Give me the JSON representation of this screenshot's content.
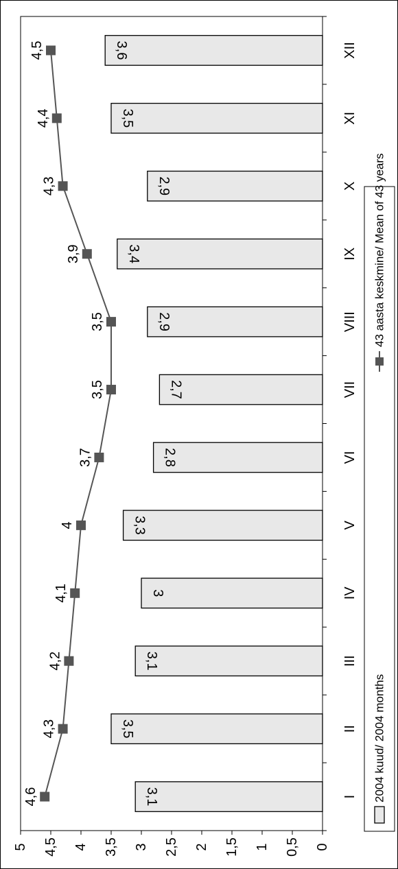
{
  "chart_data": {
    "type": "bar",
    "orientation": "rotated-90",
    "categories": [
      "I",
      "II",
      "III",
      "IV",
      "V",
      "VI",
      "VII",
      "VIII",
      "IX",
      "X",
      "XI",
      "XII"
    ],
    "ylim": [
      0,
      5
    ],
    "yticks": [
      "0",
      "0,5",
      "1",
      "1,5",
      "2",
      "2,5",
      "3",
      "3,5",
      "4",
      "4,5",
      "5"
    ],
    "grid": false,
    "legend_placement": "right",
    "series": [
      {
        "name": "2004 kuud/ 2004 months",
        "kind": "bar",
        "color": "#e8e8e8",
        "values": [
          3.1,
          3.5,
          3.1,
          3.0,
          3.3,
          2.8,
          2.7,
          2.9,
          3.4,
          2.9,
          3.5,
          3.6
        ],
        "labels": [
          "3,1",
          "3,5",
          "3,1",
          "3",
          "3,3",
          "2,8",
          "2,7",
          "2,9",
          "3,4",
          "2,9",
          "3,5",
          "3,6"
        ]
      },
      {
        "name": "43 aasta keskmine/ Mean of 43 years",
        "kind": "line",
        "color": "#555555",
        "values": [
          4.6,
          4.3,
          4.2,
          4.1,
          4.0,
          3.7,
          3.5,
          3.5,
          3.9,
          4.3,
          4.4,
          4.5
        ],
        "labels": [
          "4,6",
          "4,3",
          "4,2",
          "4,1",
          "4",
          "3,7",
          "3,5",
          "3,5",
          "3,9",
          "4,3",
          "4,4",
          "4,5"
        ]
      }
    ]
  }
}
